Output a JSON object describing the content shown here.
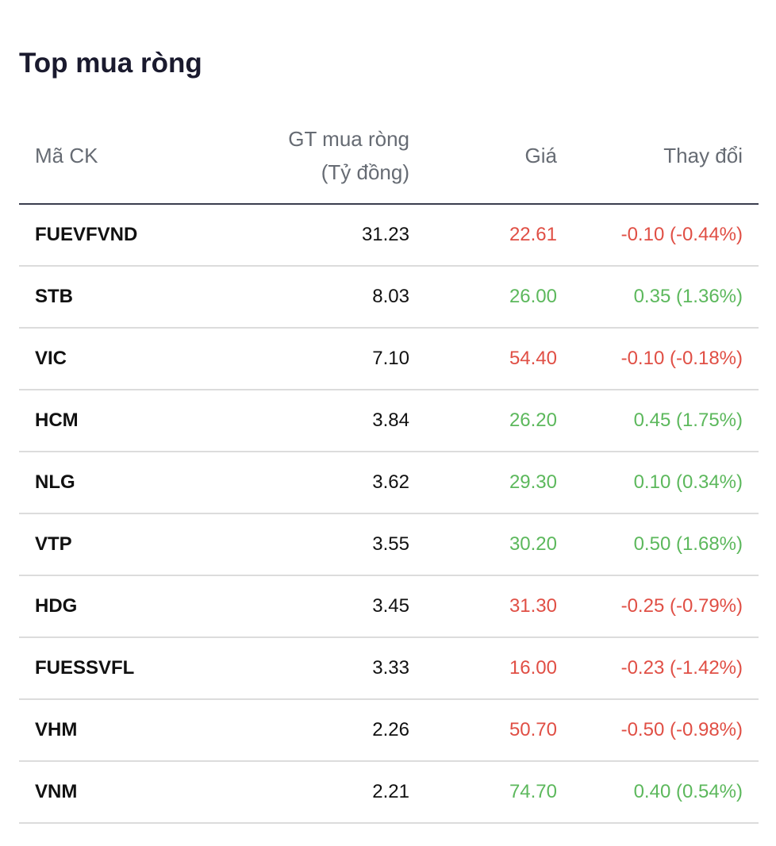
{
  "title": "Top mua ròng",
  "colors": {
    "up": "#5cb85c",
    "down": "#e04f45",
    "header_text": "#666b73",
    "title_text": "#1a1a2e"
  },
  "table": {
    "headers": {
      "code": "Mã CK",
      "value_line1": "GT mua ròng",
      "value_line2": "(Tỷ đồng)",
      "price": "Giá",
      "change": "Thay đổi"
    },
    "rows": [
      {
        "code": "FUEVFVND",
        "value": "31.23",
        "price": "22.61",
        "change": "-0.10 (-0.44%)",
        "direction": "down"
      },
      {
        "code": "STB",
        "value": "8.03",
        "price": "26.00",
        "change": "0.35 (1.36%)",
        "direction": "up"
      },
      {
        "code": "VIC",
        "value": "7.10",
        "price": "54.40",
        "change": "-0.10 (-0.18%)",
        "direction": "down"
      },
      {
        "code": "HCM",
        "value": "3.84",
        "price": "26.20",
        "change": "0.45 (1.75%)",
        "direction": "up"
      },
      {
        "code": "NLG",
        "value": "3.62",
        "price": "29.30",
        "change": "0.10 (0.34%)",
        "direction": "up"
      },
      {
        "code": "VTP",
        "value": "3.55",
        "price": "30.20",
        "change": "0.50 (1.68%)",
        "direction": "up"
      },
      {
        "code": "HDG",
        "value": "3.45",
        "price": "31.30",
        "change": "-0.25 (-0.79%)",
        "direction": "down"
      },
      {
        "code": "FUESSVFL",
        "value": "3.33",
        "price": "16.00",
        "change": "-0.23 (-1.42%)",
        "direction": "down"
      },
      {
        "code": "VHM",
        "value": "2.26",
        "price": "50.70",
        "change": "-0.50 (-0.98%)",
        "direction": "down"
      },
      {
        "code": "VNM",
        "value": "2.21",
        "price": "74.70",
        "change": "0.40 (0.54%)",
        "direction": "up"
      }
    ]
  }
}
